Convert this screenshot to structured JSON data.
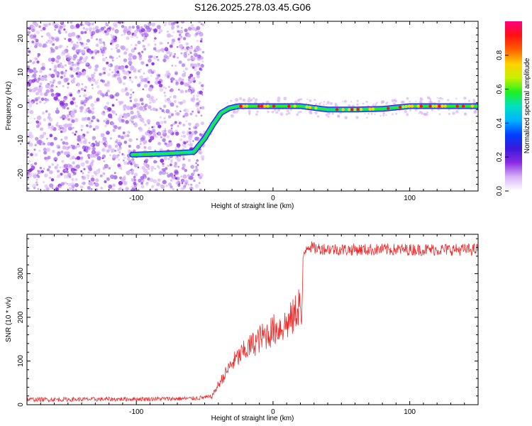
{
  "title": "S126.2025.278.03.45.G06",
  "colors": {
    "snr_line": "#ee2b2b",
    "scatter": "#7b25e6",
    "axis": "#000000",
    "colormap": [
      "#ffffff",
      "#d8b4f8",
      "#8a2be2",
      "#3b18d8",
      "#0040ff",
      "#00b4ff",
      "#00e0c0",
      "#20f020",
      "#c8f000",
      "#ffd000",
      "#ff6000",
      "#ff1010",
      "#ff0080"
    ]
  },
  "chart_data": [
    {
      "type": "heatmap",
      "title": "S126.2025.278.03.45.G06",
      "xlabel": "Height of straight line (km)",
      "ylabel": "Frequency (Hz)",
      "xlim": [
        -180,
        150
      ],
      "ylim": [
        -25,
        25
      ],
      "x_ticks": [
        -100,
        0,
        100
      ],
      "y_ticks": [
        -20,
        -10,
        0,
        10,
        20
      ],
      "colorbar": {
        "label": "Normalized spectral amplitude",
        "range": [
          0,
          1
        ],
        "ticks": [
          "0.0",
          "0.2",
          "0.4",
          "0.6",
          "0.8"
        ]
      },
      "noise_region": {
        "x": [
          -180,
          -55
        ],
        "y": [
          -25,
          25
        ]
      },
      "ridge": [
        {
          "x": -103,
          "y": -14.3
        },
        {
          "x": -80,
          "y": -14.0
        },
        {
          "x": -58,
          "y": -13.5
        },
        {
          "x": -50,
          "y": -9.5
        },
        {
          "x": -44,
          "y": -5.5
        },
        {
          "x": -38,
          "y": -2.0
        },
        {
          "x": -32,
          "y": -0.6
        },
        {
          "x": -25,
          "y": 0.0
        },
        {
          "x": 20,
          "y": 0.0
        },
        {
          "x": 40,
          "y": -1.0
        },
        {
          "x": 60,
          "y": -1.0
        },
        {
          "x": 80,
          "y": -0.8
        },
        {
          "x": 100,
          "y": 0.0
        },
        {
          "x": 150,
          "y": 0.0
        }
      ]
    },
    {
      "type": "line",
      "xlabel": "Height of straight line (km)",
      "ylabel": "SNR (10 * v/v)",
      "xlim": [
        -180,
        150
      ],
      "ylim": [
        0,
        390
      ],
      "x_ticks": [
        -100,
        0,
        100
      ],
      "y_ticks": [
        0,
        100,
        200,
        300
      ],
      "series": [
        {
          "x": [
            -180,
            -150,
            -100,
            -60,
            -45,
            -40,
            -30,
            -20,
            -10,
            0,
            10,
            15,
            20,
            21,
            22,
            25,
            30,
            50,
            100,
            150
          ],
          "values": [
            12,
            12,
            13,
            14,
            18,
            45,
            95,
            125,
            150,
            170,
            185,
            200,
            240,
            150,
            340,
            365,
            358,
            355,
            355,
            355
          ]
        }
      ]
    }
  ]
}
